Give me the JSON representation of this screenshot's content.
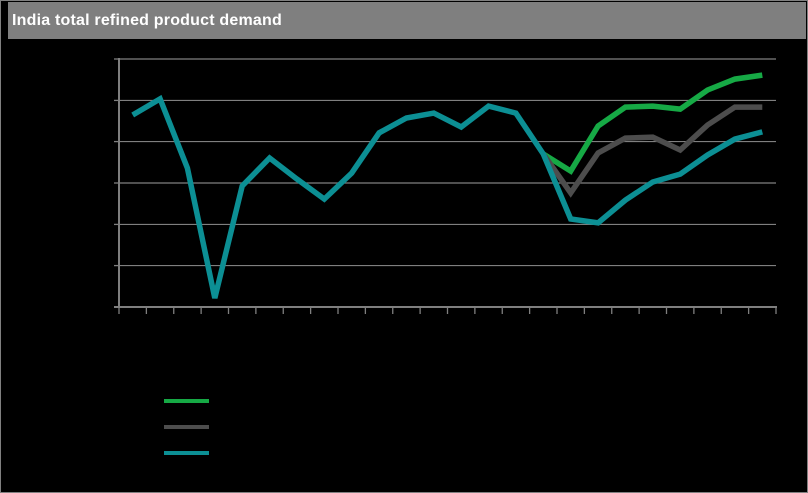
{
  "window": {
    "title_bar": {
      "label": "India total refined product demand",
      "bg_color": "#7f7f7f",
      "text_color": "#ffffff"
    }
  },
  "colors": {
    "background": "#000000",
    "frame_border": "#808080",
    "grid": "#7f7f7f",
    "axis": "#7f7f7f",
    "series_green": "#16A945",
    "series_gray": "#4d4d4d",
    "series_teal": "#0C8F94"
  },
  "legend": {
    "items": [
      {
        "name": "green-series",
        "color": "#16A945",
        "label": ""
      },
      {
        "name": "gray-series",
        "color": "#4d4d4d",
        "label": ""
      },
      {
        "name": "teal-series",
        "color": "#0C8F94",
        "label": ""
      }
    ]
  },
  "chart_data": {
    "type": "line",
    "title": "India total refined product demand",
    "subtitle": "",
    "xlabel": "",
    "ylabel": "",
    "x_axis": {
      "labels_visible": false,
      "num_points": 24,
      "tick_count": 25
    },
    "y_axis": {
      "labels_visible": false,
      "ylim": [
        0,
        100
      ],
      "gridline_values": [
        0,
        16.7,
        33.3,
        50,
        66.7,
        83.3,
        100
      ],
      "grid_on": true
    },
    "note": "Axis tick labels and legend labels are not visible in the image; y-values are normalized 0-100 across the plot area (6 gridline intervals). Single history line (teal) splits into three scenario lines (green=high, gray=mid, teal=low) after a second dip near x-index 16.",
    "series": [
      {
        "name": "green",
        "color": "#16A945",
        "start_index": 15,
        "values": [
          61.7,
          54.8,
          73.0,
          80.6,
          81.0,
          79.8,
          87.5,
          91.9,
          93.5
        ]
      },
      {
        "name": "gray",
        "color": "#4d4d4d",
        "start_index": 15,
        "values": [
          61.7,
          46.0,
          62.1,
          68.1,
          68.5,
          63.3,
          73.4,
          80.6,
          80.6
        ]
      },
      {
        "name": "teal",
        "color": "#0C8F94",
        "start_index": 0,
        "values": [
          77.4,
          83.9,
          56.0,
          3.6,
          48.8,
          60.1,
          51.6,
          43.5,
          54.0,
          70.2,
          76.2,
          78.2,
          72.6,
          81.0,
          78.2,
          61.7,
          35.5,
          33.9,
          43.1,
          50.4,
          53.6,
          61.3,
          67.7,
          70.6
        ]
      }
    ],
    "legend_position": "bottom-left"
  }
}
